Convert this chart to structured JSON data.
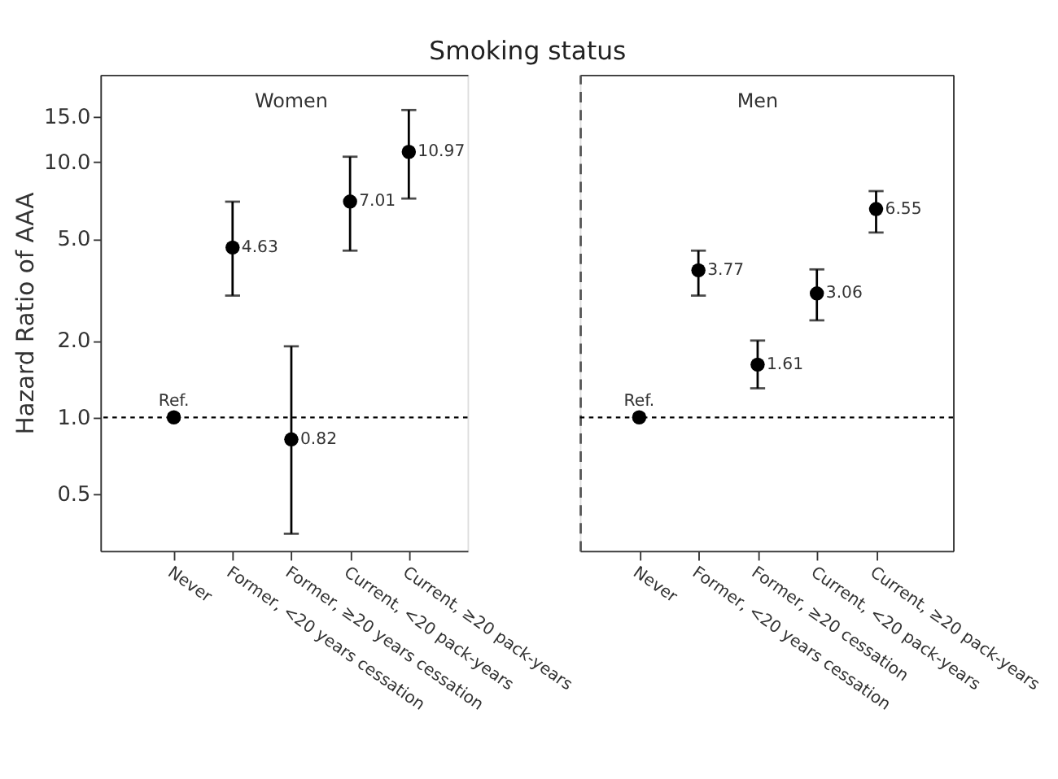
{
  "chart_data": [
    {
      "type": "scatter",
      "title": "Smoking status",
      "ylabel": "Hazard Ratio of AAA",
      "categories": [
        "Never",
        "Former, <20 years cessation",
        "Former, ≥20 years cessation",
        "Current, <20 pack-years",
        "Current, ≥20 pack-years"
      ],
      "series": [
        {
          "color": "#000000",
          "values": [
            1,
            4.63,
            0.82,
            7.01,
            10.97
          ],
          "errors": [
            null,
            [
              3.0,
              7.0
            ],
            [
              0.35,
              1.9
            ],
            [
              4.5,
              10.5
            ],
            [
              7.2,
              16.0
            ]
          ],
          "value_labels": [
            "Ref.",
            "4.63",
            "0.82",
            "7.01",
            "10.97"
          ]
        }
      ],
      "log": "y",
      "ylim": [
        0.3,
        22
      ],
      "yticks": [
        {
          "value": 0.5,
          "label": "0.5"
        },
        {
          "value": 1,
          "label": "1.0"
        },
        {
          "value": 2,
          "label": "2.0"
        },
        {
          "value": 5,
          "label": "5.0"
        },
        {
          "value": 10,
          "label": "10.0"
        },
        {
          "value": 15,
          "label": "15.0"
        }
      ],
      "annotations": [
        "Women"
      ],
      "ref_lines": [
        {
          "axis": "y",
          "value": 1,
          "color": "#000000",
          "line_style": "dotted"
        }
      ],
      "marker": "circle",
      "grid": false
    },
    {
      "type": "scatter",
      "categories": [
        "Never",
        "Former, <20 years cessation",
        "Former, ≥20 cessation",
        "Current, <20 pack-years",
        "Current, ≥20 pack-years"
      ],
      "series": [
        {
          "color": "#000000",
          "values": [
            1,
            3.77,
            1.61,
            3.06,
            6.55
          ],
          "errors": [
            null,
            [
              3.0,
              4.5
            ],
            [
              1.3,
              2.0
            ],
            [
              2.4,
              3.8
            ],
            [
              5.3,
              7.7
            ]
          ],
          "value_labels": [
            "Ref.",
            "3.77",
            "1.61",
            "3.06",
            "6.55"
          ]
        }
      ],
      "log": "y",
      "ylim": [
        0.3,
        22
      ],
      "tick_labels": "x",
      "annotations": [
        "Men"
      ],
      "ref_lines": [
        {
          "axis": "y",
          "value": 1,
          "color": "#000000",
          "line_style": "dotted"
        }
      ],
      "marker": "circle",
      "grid": false
    }
  ]
}
